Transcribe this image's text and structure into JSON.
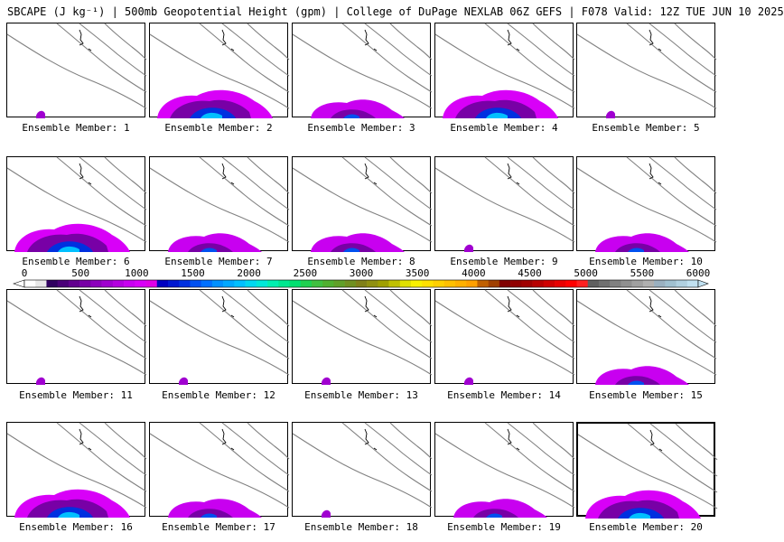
{
  "title": "SBCAPE (J kg⁻¹) | 500mb Geopotential Height (gpm) | College of DuPage NEXLAB 06Z GEFS | F078 Valid: 12Z TUE JUN 10 2025",
  "member_label_prefix": "Ensemble Member: ",
  "members": [
    {
      "num": "1",
      "cape": "low"
    },
    {
      "num": "2",
      "cape": "high"
    },
    {
      "num": "3",
      "cape": "moderate"
    },
    {
      "num": "4",
      "cape": "high"
    },
    {
      "num": "5",
      "cape": "low"
    },
    {
      "num": "6",
      "cape": "high"
    },
    {
      "num": "7",
      "cape": "moderate"
    },
    {
      "num": "8",
      "cape": "moderate"
    },
    {
      "num": "9",
      "cape": "low"
    },
    {
      "num": "10",
      "cape": "moderate"
    },
    {
      "num": "11",
      "cape": "low"
    },
    {
      "num": "12",
      "cape": "low"
    },
    {
      "num": "13",
      "cape": "low"
    },
    {
      "num": "14",
      "cape": "low"
    },
    {
      "num": "15",
      "cape": "moderate"
    },
    {
      "num": "16",
      "cape": "high"
    },
    {
      "num": "17",
      "cape": "moderate"
    },
    {
      "num": "18",
      "cape": "low"
    },
    {
      "num": "19",
      "cape": "moderate"
    },
    {
      "num": "20",
      "cape": "high"
    }
  ],
  "colorbar": {
    "tick_labels": [
      "0",
      "500",
      "1000",
      "1500",
      "2000",
      "2500",
      "3000",
      "3500",
      "4000",
      "4500",
      "5000",
      "5500",
      "6000"
    ],
    "min": 0,
    "max": 6000,
    "step": 100,
    "colors": [
      "#ffffff",
      "#e8e8e8",
      "#300060",
      "#4a0078",
      "#62008e",
      "#7800a6",
      "#8c00bc",
      "#a000d0",
      "#b400e0",
      "#c800f0",
      "#d800f8",
      "#e000e8",
      "#0000c0",
      "#0018d0",
      "#0030e0",
      "#0050f0",
      "#0070ff",
      "#0090ff",
      "#00a8ff",
      "#00c0ff",
      "#00d8f0",
      "#00e8d8",
      "#00f0b0",
      "#00e890",
      "#00e070",
      "#20d050",
      "#40c040",
      "#50b030",
      "#60a028",
      "#709020",
      "#808018",
      "#909010",
      "#a0a000",
      "#c0c000",
      "#e0e000",
      "#f8f000",
      "#ffe000",
      "#ffd000",
      "#ffc000",
      "#ffb000",
      "#ffa000",
      "#c06000",
      "#a04000",
      "#800000",
      "#900000",
      "#a00000",
      "#b80000",
      "#d00000",
      "#e80000",
      "#ff0000",
      "#ff2020",
      "#606060",
      "#707070",
      "#808080",
      "#909090",
      "#a0a0a0",
      "#b0b0b0",
      "#9ab0c0",
      "#a0c0d0",
      "#b0d0e0",
      "#c0e0f0"
    ]
  }
}
